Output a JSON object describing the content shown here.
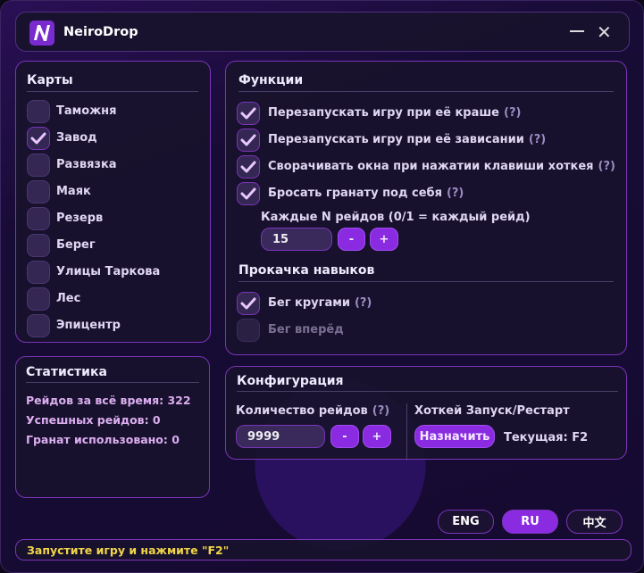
{
  "app": {
    "title": "NeiroDrop"
  },
  "maps": {
    "title": "Карты",
    "items": [
      {
        "label": "Таможня",
        "checked": false
      },
      {
        "label": "Завод",
        "checked": true
      },
      {
        "label": "Развязка",
        "checked": false
      },
      {
        "label": "Маяк",
        "checked": false
      },
      {
        "label": "Резерв",
        "checked": false
      },
      {
        "label": "Берег",
        "checked": false
      },
      {
        "label": "Улицы Таркова",
        "checked": false
      },
      {
        "label": "Лес",
        "checked": false
      },
      {
        "label": "Эпицентр",
        "checked": false
      }
    ]
  },
  "stats": {
    "title": "Статистика",
    "total": "Рейдов за всё время: 322",
    "success": "Успешных рейдов: 0",
    "grenades": "Гранат использовано: 0"
  },
  "functions": {
    "title": "Функции",
    "items": [
      {
        "label": "Перезапускать игру при её краше",
        "help": "(?)",
        "checked": true
      },
      {
        "label": "Перезапускать игру при её зависании",
        "help": "(?)",
        "checked": true
      },
      {
        "label": "Сворачивать окна при нажатии клавиши хоткея",
        "help": "(?)",
        "checked": true
      },
      {
        "label": "Бросать гранату под себя",
        "help": "(?)",
        "checked": true
      }
    ],
    "every_n_label": "Каждые N рейдов (0/1 = каждый рейд)",
    "every_n_value": "15",
    "minus": "-",
    "plus": "+"
  },
  "skills": {
    "title": "Прокачка навыков",
    "items": [
      {
        "label": "Бег кругами",
        "help": "(?)",
        "checked": true
      },
      {
        "label": "Бег вперёд",
        "checked": false,
        "disabled": true
      }
    ]
  },
  "config": {
    "title": "Конфигурация",
    "raids_label": "Количество рейдов",
    "raids_help": "(?)",
    "raids_value": "9999",
    "minus": "-",
    "plus": "+",
    "hotkey_label": "Хоткей Запуск/Рестарт",
    "assign": "Назначить",
    "current": "Текущая: F2"
  },
  "languages": [
    {
      "label": "ENG",
      "active": false
    },
    {
      "label": "RU",
      "active": true
    },
    {
      "label": "中文",
      "active": false
    }
  ],
  "status": {
    "text": "Запустите игру и нажмите \"F2\"",
    "color": "#f2d54a"
  },
  "colors": {
    "accent": "#8a2be2",
    "border": "#7a34b8"
  }
}
